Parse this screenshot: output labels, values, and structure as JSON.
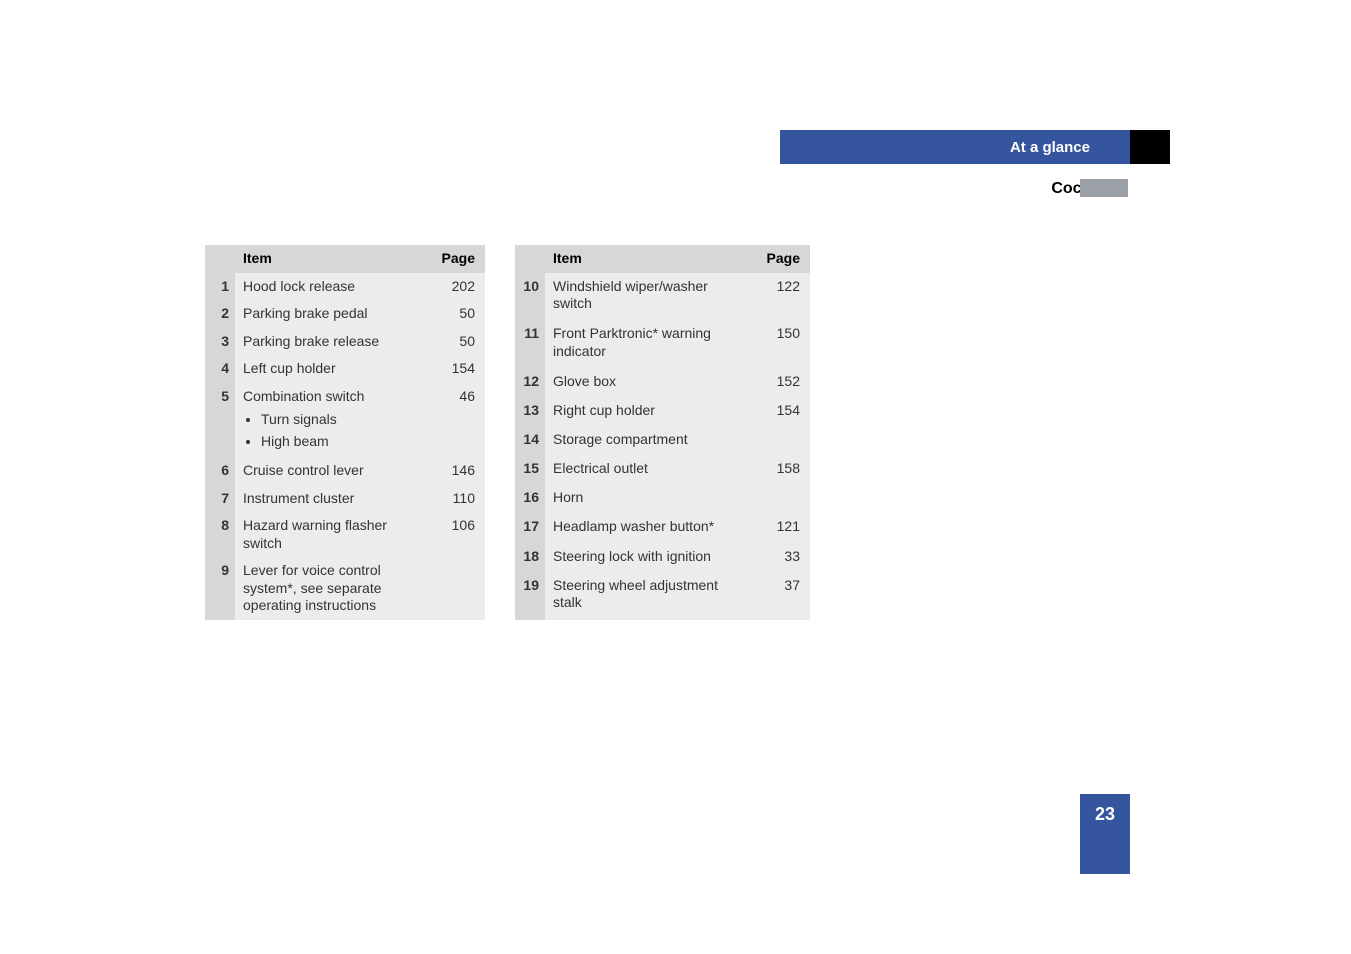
{
  "header": {
    "section_label": "At a glance",
    "sub_title": "Cockpit",
    "accent_color": "#35559e",
    "tab_color": "#000000",
    "subtab_color": "#9aa0a6"
  },
  "table_left": {
    "col_item": "Item",
    "col_page": "Page",
    "rows": [
      {
        "n": "1",
        "item": "Hood lock release",
        "page": "202"
      },
      {
        "n": "2",
        "item": "Parking brake pedal",
        "page": "50"
      },
      {
        "n": "3",
        "item": "Parking brake release",
        "page": "50"
      },
      {
        "n": "4",
        "item": "Left cup holder",
        "page": "154"
      },
      {
        "n": "5",
        "item": "Combination switch",
        "page": "46",
        "sub": [
          "Turn signals",
          "High beam"
        ]
      },
      {
        "n": "6",
        "item": "Cruise control lever",
        "page": "146"
      },
      {
        "n": "7",
        "item": "Instrument cluster",
        "page": "110"
      },
      {
        "n": "8",
        "item": "Hazard warning flasher switch",
        "page": "106"
      },
      {
        "n": "9",
        "item": "Lever for voice control system*, see separate operating instructions",
        "page": ""
      }
    ]
  },
  "table_right": {
    "col_item": "Item",
    "col_page": "Page",
    "rows": [
      {
        "n": "10",
        "item": "Windshield wiper/washer switch",
        "page": "122"
      },
      {
        "n": "11",
        "item": "Front Parktronic* warning indicator",
        "page": "150"
      },
      {
        "n": "12",
        "item": "Glove box",
        "page": "152"
      },
      {
        "n": "13",
        "item": "Right cup holder",
        "page": "154"
      },
      {
        "n": "14",
        "item": "Storage compartment",
        "page": ""
      },
      {
        "n": "15",
        "item": "Electrical outlet",
        "page": "158"
      },
      {
        "n": "16",
        "item": "Horn",
        "page": ""
      },
      {
        "n": "17",
        "item": "Headlamp washer button*",
        "page": "121"
      },
      {
        "n": "18",
        "item": "Steering lock with ignition",
        "page": "33"
      },
      {
        "n": "19",
        "item": "Steering wheel adjustment stalk",
        "page": "37"
      }
    ]
  },
  "footer": {
    "page_number": "23"
  },
  "style": {
    "header_row_bg": "#d6d7d8",
    "num_col_bg": "#d6d7d8",
    "cell_bg": "#ececec",
    "text_color": "#333333",
    "font_size_body": 14,
    "font_size_header": 15,
    "font_size_pagenum": 18
  }
}
